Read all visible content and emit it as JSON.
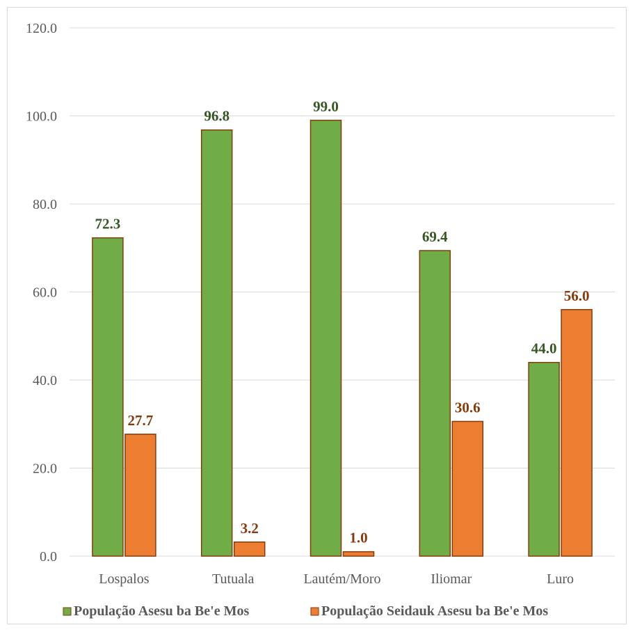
{
  "chart_data": {
    "type": "bar",
    "categories": [
      "Lospalos",
      "Tutuala",
      "Lautém/Moro",
      "Iliomar",
      "Luro"
    ],
    "series": [
      {
        "name": "População Asesu ba Be'e Mos",
        "values": [
          72.3,
          96.8,
          99.0,
          69.4,
          44.0
        ],
        "fill": "#70ad47",
        "stroke": "#843c0c",
        "label_color": "#375623"
      },
      {
        "name": "População Seidauk Asesu ba Be'e Mos",
        "values": [
          27.7,
          3.2,
          1.0,
          30.6,
          56.0
        ],
        "fill": "#ed7d31",
        "stroke": "#843c0c",
        "label_color": "#843c0c"
      }
    ],
    "yticks": [
      "0.0",
      "20.0",
      "40.0",
      "60.0",
      "80.0",
      "100.0",
      "120.0"
    ],
    "ylim": [
      0,
      120
    ],
    "grid": true,
    "legend_position": "bottom",
    "gridline_color": "#d9d9d9",
    "axis_color": "#d9d9d9"
  }
}
